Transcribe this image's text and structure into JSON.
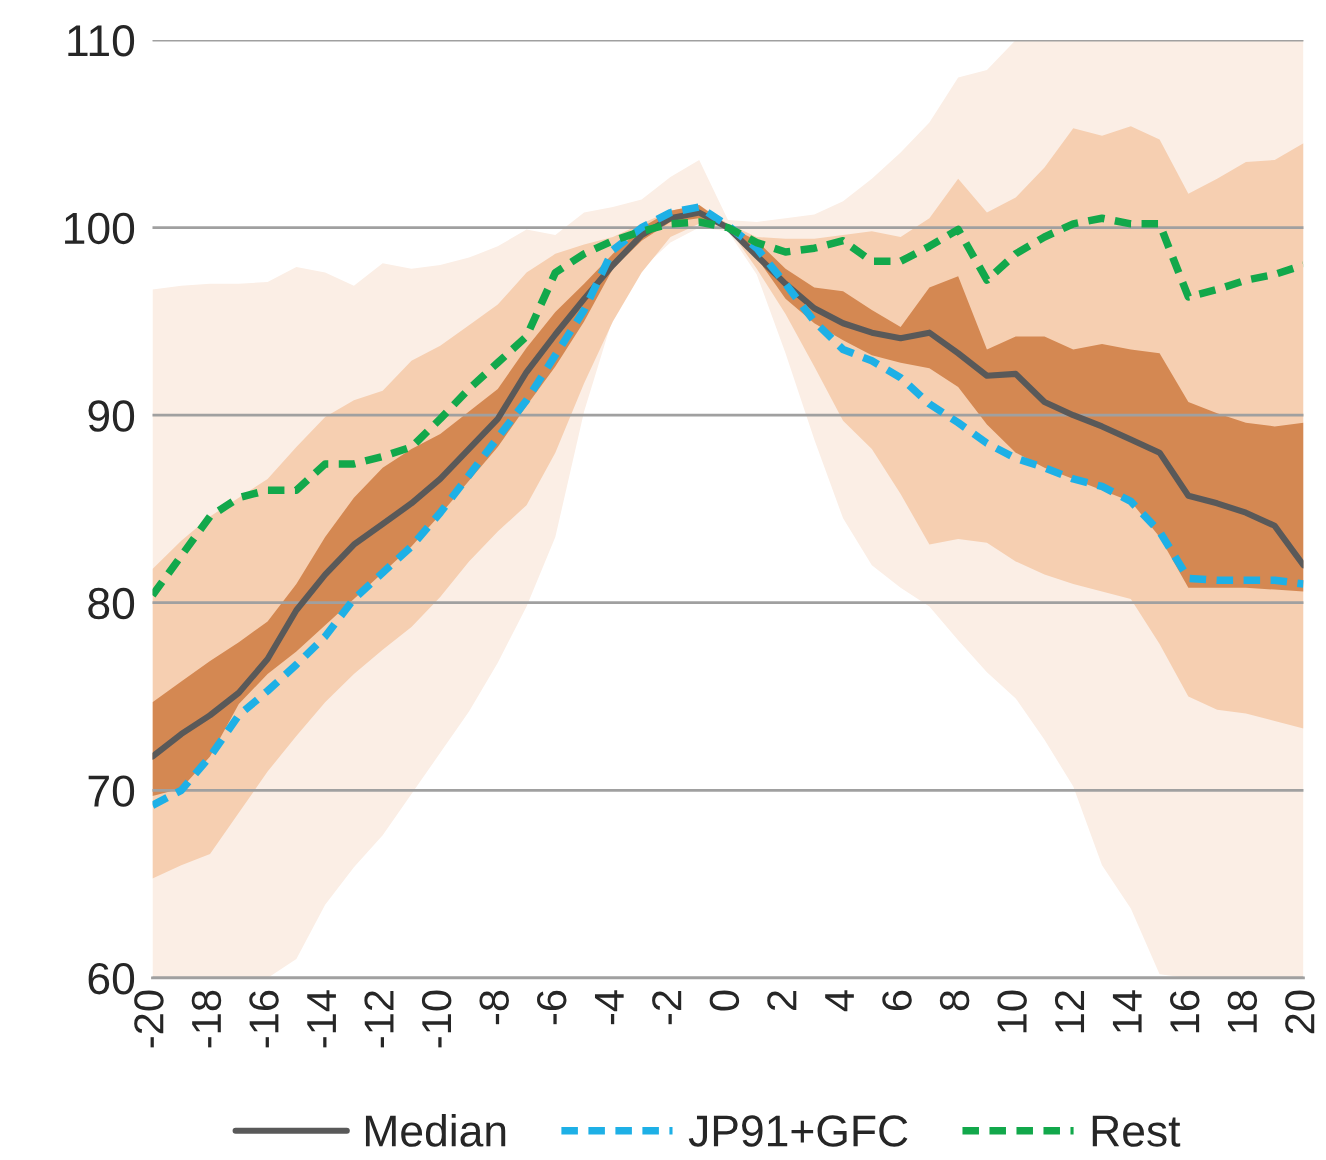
{
  "chart_data": {
    "type": "line",
    "x": [
      -20,
      -19,
      -18,
      -17,
      -16,
      -15,
      -14,
      -13,
      -12,
      -11,
      -10,
      -9,
      -8,
      -7,
      -6,
      -5,
      -4,
      -3,
      -2,
      -1,
      0,
      1,
      2,
      3,
      4,
      5,
      6,
      7,
      8,
      9,
      10,
      11,
      12,
      13,
      14,
      15,
      16,
      17,
      18,
      19,
      20
    ],
    "xlim": [
      -20,
      20
    ],
    "xticks": [
      -20,
      -18,
      -16,
      -14,
      -12,
      -10,
      -8,
      -6,
      -4,
      -2,
      0,
      2,
      4,
      6,
      8,
      10,
      12,
      14,
      16,
      18,
      20
    ],
    "ylim": [
      60,
      110
    ],
    "yticks": [
      60,
      70,
      80,
      90,
      100,
      110
    ],
    "grid": "y",
    "legend": "bottom",
    "series": [
      {
        "type": "area",
        "color": "#fbeee5",
        "values": [
          null,
          null,
          null,
          null,
          null,
          null,
          null,
          null,
          null,
          null,
          null,
          null,
          null,
          null,
          null,
          null,
          null,
          null,
          null,
          null,
          null,
          null,
          null,
          null,
          null,
          null,
          null,
          null,
          null,
          null,
          null,
          null,
          null,
          null,
          null,
          null,
          null,
          null,
          null,
          null,
          null
        ],
        "lower": [
          60,
          60,
          60,
          60,
          60,
          61.0,
          63.9,
          65.9,
          67.6,
          69.8,
          72.0,
          74.2,
          76.8,
          79.8,
          83.5,
          90.2,
          95.2,
          97.8,
          99.2,
          100.0,
          99.8,
          97.5,
          93.3,
          88.7,
          84.5,
          82.0,
          80.8,
          79.8,
          78.0,
          76.3,
          74.9,
          72.7,
          70.2,
          66.0,
          63.7,
          60.2,
          60,
          60,
          60,
          60,
          60
        ],
        "upper": [
          96.7,
          96.9,
          97.0,
          97.0,
          97.1,
          97.9,
          97.6,
          96.9,
          98.1,
          97.8,
          98.0,
          98.4,
          99.0,
          99.9,
          99.6,
          100.8,
          101.1,
          101.5,
          102.7,
          103.6,
          100.4,
          100.3,
          100.5,
          100.7,
          101.4,
          102.6,
          104.0,
          105.6,
          108.0,
          108.4,
          110,
          110,
          110,
          110,
          110,
          110,
          110,
          110,
          110,
          110,
          110
        ]
      },
      {
        "type": "area",
        "color": "#f6cfb1",
        "values": [
          null,
          null,
          null,
          null,
          null,
          null,
          null,
          null,
          null,
          null,
          null,
          null,
          null,
          null,
          null,
          null,
          null,
          null,
          null,
          null,
          null,
          null,
          null,
          null,
          null,
          null,
          null,
          null,
          null,
          null,
          null,
          null,
          null,
          null,
          null,
          null,
          null,
          null,
          null,
          null,
          null
        ],
        "lower": [
          65.3,
          66.0,
          66.6,
          68.8,
          71.0,
          72.9,
          74.7,
          76.2,
          77.5,
          78.7,
          80.3,
          82.2,
          83.8,
          85.2,
          88.0,
          91.7,
          95.0,
          97.6,
          99.5,
          100.2,
          100.0,
          97.8,
          95.4,
          92.6,
          89.7,
          88.2,
          85.8,
          83.1,
          83.4,
          83.2,
          82.2,
          81.5,
          81.0,
          80.6,
          80.2,
          77.8,
          75.0,
          74.3,
          74.1,
          73.7,
          73.3
        ],
        "upper": [
          81.8,
          83.3,
          84.6,
          85.6,
          86.6,
          88.3,
          89.9,
          90.8,
          91.3,
          92.9,
          93.7,
          94.8,
          95.9,
          97.6,
          98.6,
          99.1,
          99.5,
          100.2,
          100.9,
          101.2,
          100.2,
          99.5,
          99.4,
          99.4,
          99.6,
          99.8,
          99.5,
          100.5,
          102.6,
          100.8,
          101.6,
          103.2,
          105.3,
          104.9,
          105.4,
          104.7,
          101.8,
          102.6,
          103.5,
          103.6,
          104.5
        ]
      },
      {
        "type": "area",
        "color": "#d48852",
        "values": [
          null,
          null,
          null,
          null,
          null,
          null,
          null,
          null,
          null,
          null,
          null,
          null,
          null,
          null,
          null,
          null,
          null,
          null,
          null,
          null,
          null,
          null,
          null,
          null,
          null,
          null,
          null,
          null,
          null,
          null,
          null,
          null,
          null,
          null,
          null,
          null,
          null,
          null,
          null,
          null,
          null
        ],
        "lower": [
          69.7,
          70.1,
          71.8,
          74.6,
          76.2,
          77.4,
          78.8,
          80.2,
          81.6,
          83.0,
          84.7,
          86.5,
          88.3,
          90.5,
          92.6,
          95.0,
          97.8,
          99.3,
          100.3,
          100.5,
          100.0,
          98.4,
          96.2,
          94.9,
          94.0,
          93.2,
          92.8,
          92.5,
          91.5,
          89.5,
          88.0,
          87.2,
          86.6,
          86.0,
          85.4,
          83.5,
          80.8,
          80.8,
          80.8,
          80.7,
          80.6
        ],
        "upper": [
          74.7,
          75.8,
          76.9,
          77.9,
          79.0,
          81.0,
          83.5,
          85.6,
          87.2,
          88.2,
          89.0,
          90.2,
          91.4,
          93.6,
          95.5,
          97.0,
          98.6,
          100.0,
          100.9,
          101.2,
          100.1,
          99.3,
          97.8,
          96.8,
          96.6,
          95.6,
          94.7,
          96.8,
          97.4,
          93.5,
          94.2,
          94.2,
          93.5,
          93.8,
          93.5,
          93.3,
          90.7,
          90.1,
          89.6,
          89.4,
          89.6
        ]
      },
      {
        "name": "Median",
        "color": "#595959",
        "line_style": "solid",
        "values": [
          71.8,
          73.0,
          74.0,
          75.2,
          77.0,
          79.6,
          81.5,
          83.1,
          84.2,
          85.3,
          86.6,
          88.2,
          89.8,
          92.3,
          94.3,
          96.2,
          98.0,
          99.6,
          100.5,
          100.8,
          100.0,
          98.5,
          97.0,
          95.7,
          94.9,
          94.4,
          94.1,
          94.4,
          93.3,
          92.1,
          92.2,
          90.7,
          90.0,
          89.4,
          88.7,
          88.0,
          85.7,
          85.3,
          84.8,
          84.1,
          82.0
        ]
      },
      {
        "name": "JP91+GFC",
        "color": "#1eb0e6",
        "line_style": "dashed",
        "values": [
          69.2,
          70.0,
          71.8,
          74.0,
          75.3,
          76.7,
          78.2,
          80.2,
          81.6,
          83.0,
          84.8,
          86.8,
          88.8,
          90.8,
          93.2,
          95.6,
          98.8,
          100.0,
          100.8,
          101.1,
          100.1,
          98.9,
          97.0,
          95.0,
          93.5,
          92.9,
          92.0,
          90.6,
          89.6,
          88.5,
          87.7,
          87.2,
          86.6,
          86.2,
          85.4,
          83.8,
          81.3,
          81.2,
          81.2,
          81.2,
          81.0
        ]
      },
      {
        "name": "Rest",
        "color": "#12a84b",
        "line_style": "dashed",
        "values": [
          80.4,
          82.5,
          84.6,
          85.6,
          86.0,
          86.0,
          87.4,
          87.4,
          87.8,
          88.3,
          89.8,
          91.4,
          92.8,
          94.2,
          97.6,
          98.6,
          99.3,
          99.8,
          100.2,
          100.3,
          100.0,
          99.2,
          98.7,
          98.9,
          99.3,
          98.2,
          98.2,
          99.0,
          99.9,
          97.2,
          98.6,
          99.5,
          100.2,
          100.5,
          100.2,
          100.2,
          96.3,
          96.7,
          97.2,
          97.5,
          98.0
        ]
      }
    ]
  }
}
